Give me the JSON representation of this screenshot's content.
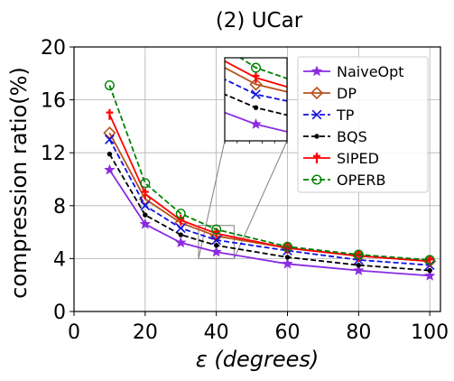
{
  "chart_data": {
    "type": "line",
    "title": "(2) UCar",
    "xlabel_symbol": "ε",
    "xlabel_unit": "(degrees)",
    "ylabel": "compression ratio(%)",
    "x": [
      10,
      20,
      30,
      40,
      60,
      80,
      100
    ],
    "xlim": [
      0,
      103
    ],
    "ylim": [
      0,
      20
    ],
    "xticks": [
      0,
      20,
      40,
      60,
      80,
      100
    ],
    "yticks": [
      0,
      4,
      8,
      12,
      16,
      20
    ],
    "grid": true,
    "legend_position": "top-right",
    "series": [
      {
        "name": "NaiveOpt",
        "color": "#8a2be2",
        "dash": "solid",
        "marker": "star",
        "values": [
          10.7,
          6.6,
          5.2,
          4.5,
          3.6,
          3.1,
          2.7
        ]
      },
      {
        "name": "DP",
        "color": "#b8501c",
        "dash": "solid",
        "marker": "diamond",
        "values": [
          13.5,
          8.5,
          6.7,
          5.7,
          4.8,
          4.2,
          3.8
        ]
      },
      {
        "name": "TP",
        "color": "#1010e0",
        "dash": "dashed",
        "marker": "x",
        "values": [
          13.0,
          8.0,
          6.3,
          5.4,
          4.6,
          3.9,
          3.5
        ]
      },
      {
        "name": "BQS",
        "color": "#000000",
        "dash": "dashed",
        "marker": "dot",
        "values": [
          11.9,
          7.3,
          5.8,
          5.0,
          4.1,
          3.5,
          3.1
        ]
      },
      {
        "name": "SIPED",
        "color": "#ff0000",
        "dash": "solid",
        "marker": "plus",
        "values": [
          14.9,
          8.9,
          6.9,
          5.9,
          4.8,
          4.2,
          3.8
        ]
      },
      {
        "name": "OPERB",
        "color": "#008000",
        "dash": "dashed",
        "marker": "circle",
        "values": [
          17.1,
          9.7,
          7.4,
          6.2,
          4.9,
          4.3,
          3.9
        ]
      }
    ],
    "inset": {
      "xlim": [
        35,
        45
      ],
      "ylim": [
        4,
        6.5
      ]
    }
  }
}
